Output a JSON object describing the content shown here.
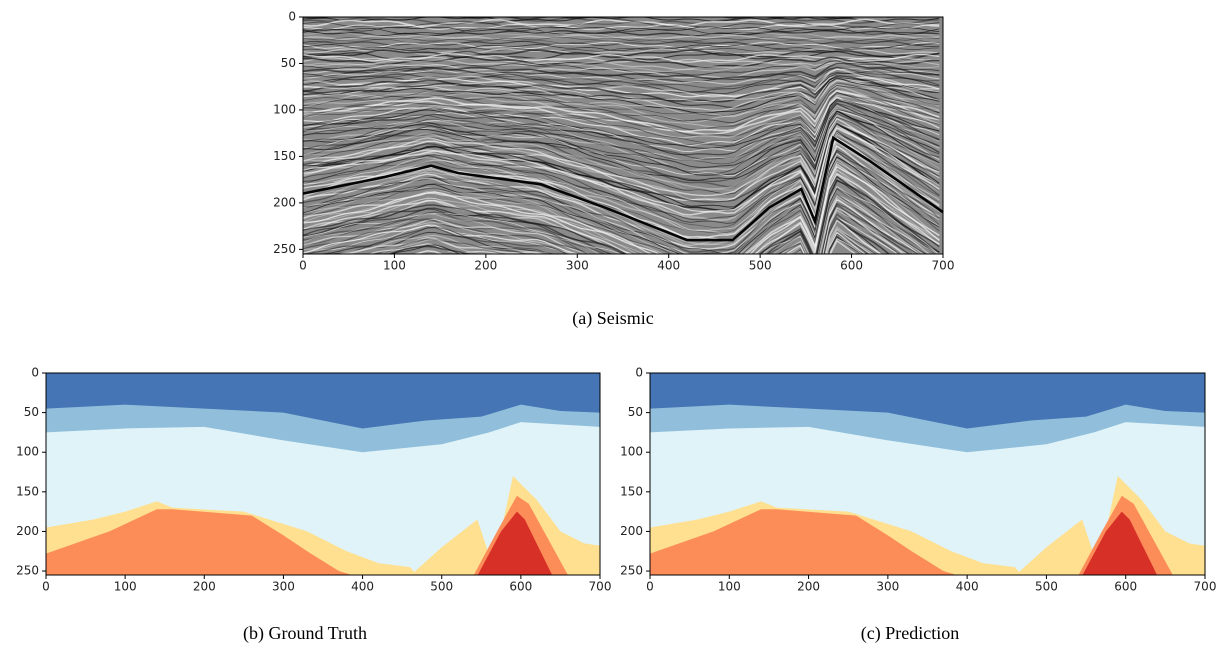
{
  "chart_data": [
    {
      "type": "image",
      "title": "(a) Seismic",
      "xlim": [
        0,
        700
      ],
      "ylim": [
        255,
        0
      ],
      "xticks": [
        0,
        100,
        200,
        300,
        400,
        500,
        600,
        700
      ],
      "yticks": [
        0,
        50,
        100,
        150,
        200,
        250
      ]
    },
    {
      "type": "image",
      "title": "(b) Ground Truth",
      "xlim": [
        0,
        700
      ],
      "ylim": [
        255,
        0
      ],
      "xticks": [
        0,
        100,
        200,
        300,
        400,
        500,
        600,
        700
      ],
      "yticks": [
        0,
        50,
        100,
        150,
        200,
        250
      ]
    },
    {
      "type": "image",
      "title": "(c) Prediction",
      "xlim": [
        0,
        700
      ],
      "ylim": [
        255,
        0
      ],
      "xticks": [
        0,
        100,
        200,
        300,
        400,
        500,
        600,
        700
      ],
      "yticks": [
        0,
        50,
        100,
        150,
        200,
        250
      ]
    }
  ]
}
